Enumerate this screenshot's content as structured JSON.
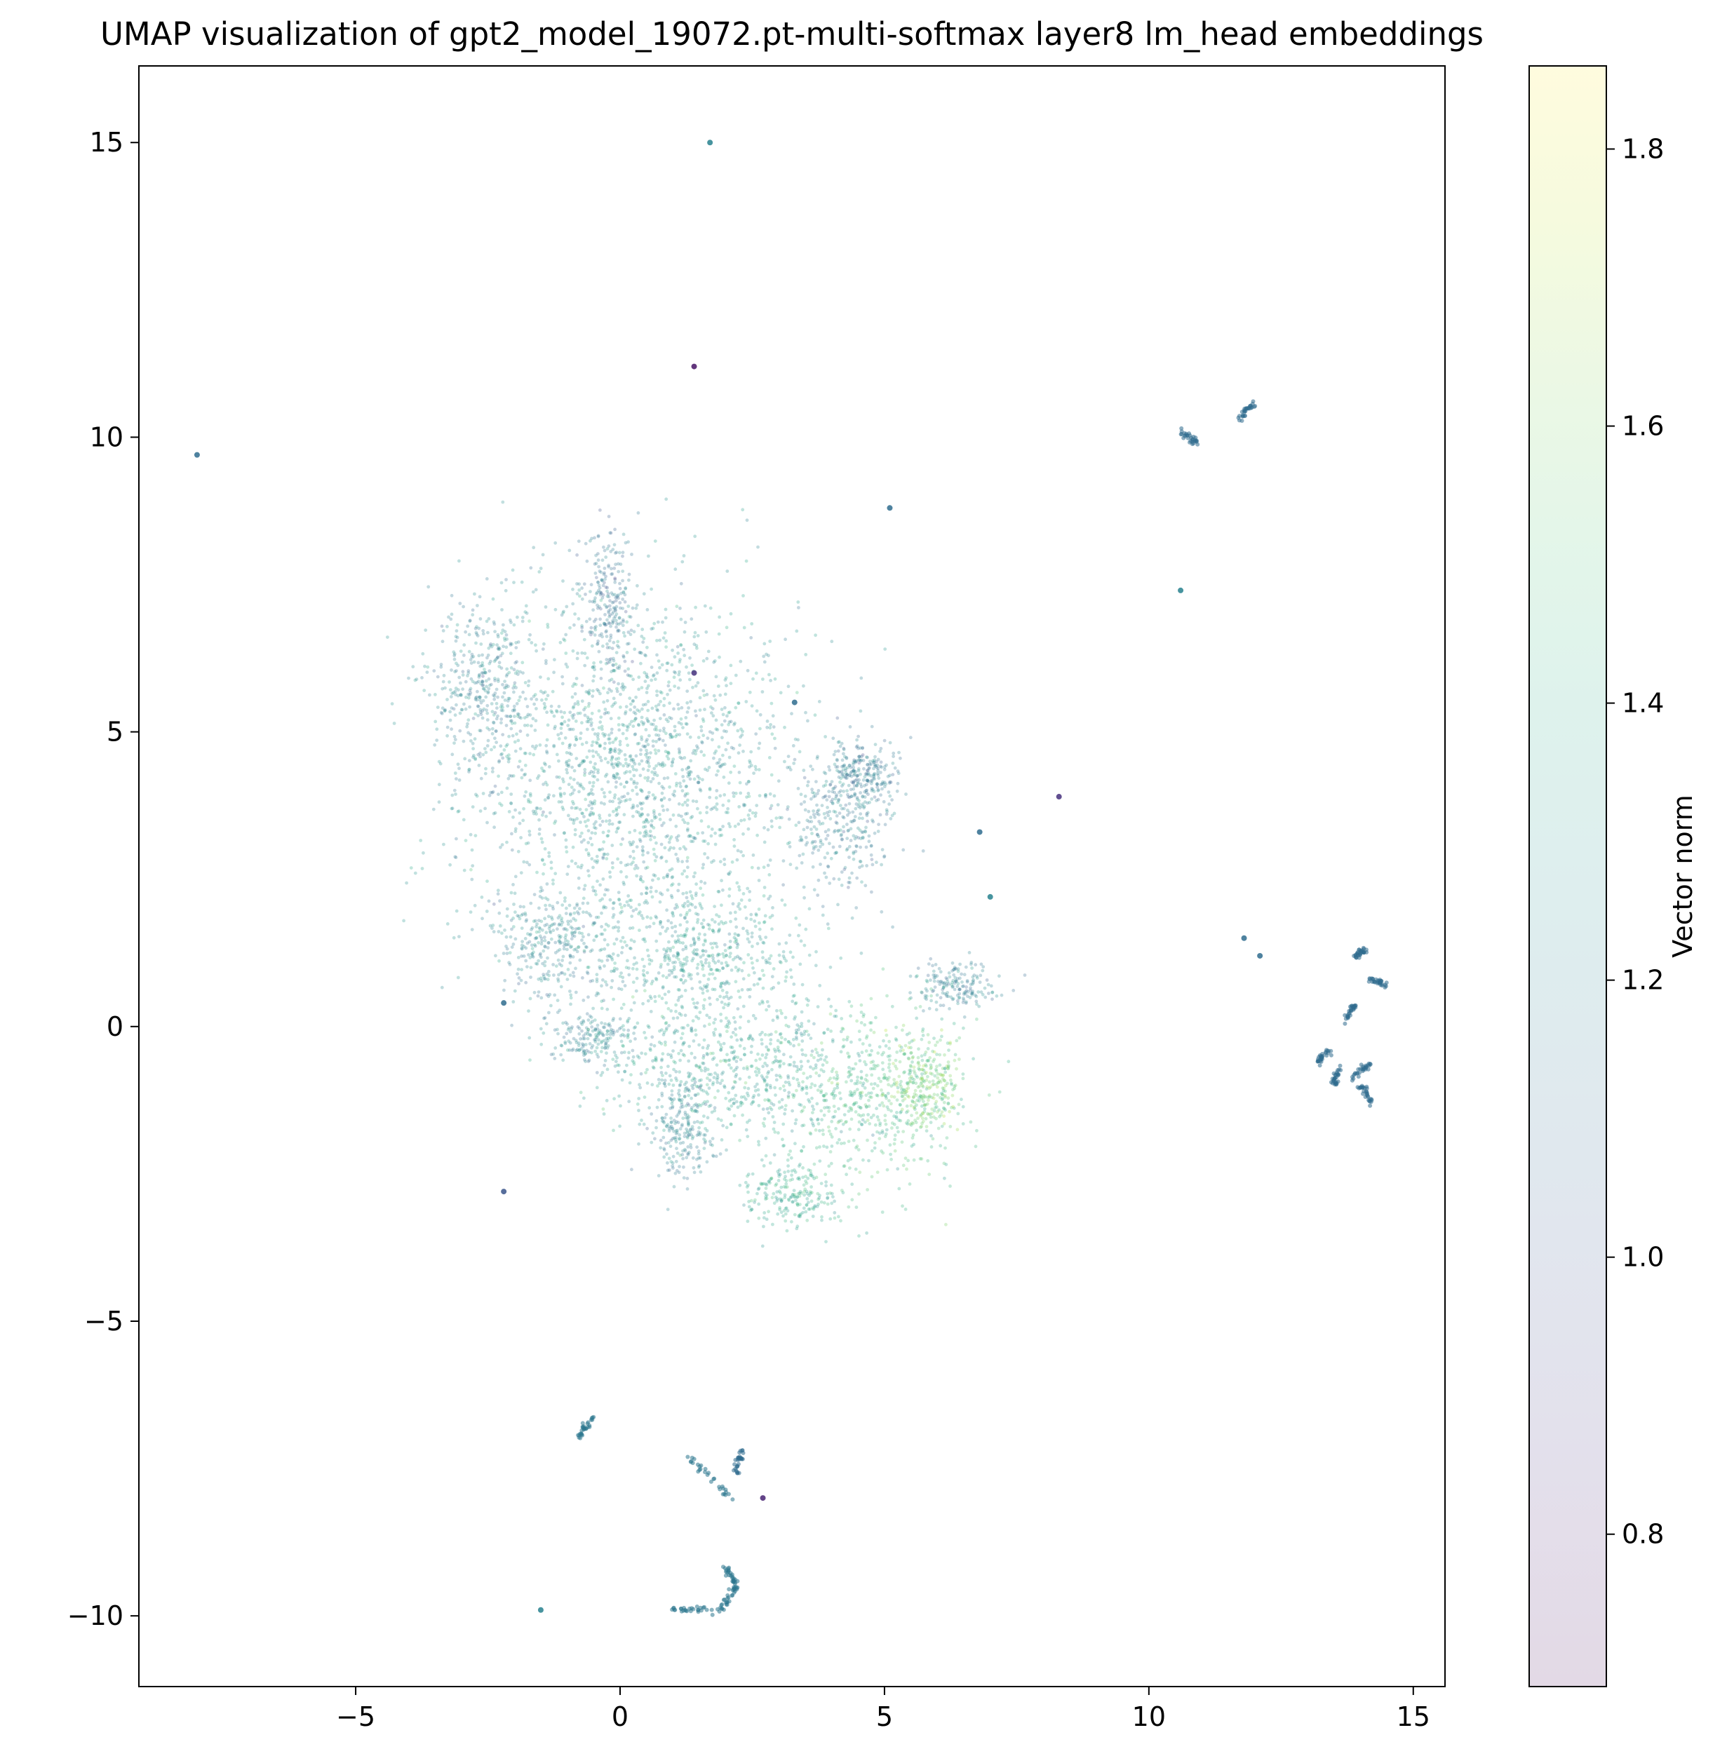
{
  "chart_data": {
    "type": "scatter",
    "title": "UMAP visualization of gpt2_model_19072.pt-multi-softmax layer8 lm_head embeddings",
    "xlabel": "",
    "ylabel": "",
    "xlim": [
      -9.1,
      15.6
    ],
    "ylim": [
      -11.2,
      16.3
    ],
    "x_ticks": [
      -5,
      0,
      5,
      10,
      15
    ],
    "y_ticks": [
      -10,
      -5,
      0,
      5,
      10,
      15
    ],
    "grid": false,
    "colormap": "viridis",
    "point_alpha": "low (semi-transparent)",
    "colorbar": {
      "label": "Vector norm",
      "range": [
        0.69,
        1.86
      ],
      "ticks": [
        0.8,
        1.0,
        1.2,
        1.4,
        1.6,
        1.8
      ]
    },
    "clusters": [
      {
        "name": "main upper-left mass",
        "center": [
          0.2,
          4.4
        ],
        "spread": [
          1.6,
          1.5
        ],
        "norm": 1.26
      },
      {
        "name": "upper-left dense edge",
        "center": [
          -2.6,
          5.8
        ],
        "spread": [
          0.5,
          0.7
        ],
        "norm": 1.18
      },
      {
        "name": "upward spur",
        "center": [
          -0.2,
          7.2
        ],
        "spread": [
          0.25,
          0.6
        ],
        "norm": 1.12
      },
      {
        "name": "lower-left arm",
        "center": [
          -1.2,
          1.4
        ],
        "spread": [
          0.6,
          0.5
        ],
        "norm": 1.2
      },
      {
        "name": "right lobe",
        "center": [
          4.2,
          3.6
        ],
        "spread": [
          0.5,
          0.7
        ],
        "norm": 1.18
      },
      {
        "name": "right lobe dense tip",
        "center": [
          4.6,
          4.3
        ],
        "spread": [
          0.3,
          0.2
        ],
        "norm": 1.15
      },
      {
        "name": "lower-right dense cluster",
        "center": [
          4.8,
          -1.1
        ],
        "spread": [
          0.9,
          0.7
        ],
        "norm": 1.45
      },
      {
        "name": "lower-right bright edge",
        "center": [
          5.8,
          -1.0
        ],
        "spread": [
          0.3,
          0.4
        ],
        "norm": 1.58
      },
      {
        "name": "lower middle band",
        "center": [
          2.0,
          -0.7
        ],
        "spread": [
          1.2,
          0.6
        ],
        "norm": 1.32
      },
      {
        "name": "lower stalk",
        "center": [
          1.2,
          -1.8
        ],
        "spread": [
          0.3,
          0.4
        ],
        "norm": 1.2
      },
      {
        "name": "bottom tail",
        "center": [
          3.3,
          -2.8
        ],
        "spread": [
          0.5,
          0.3
        ],
        "norm": 1.38
      },
      {
        "name": "middle bridge",
        "center": [
          1.5,
          1.2
        ],
        "spread": [
          1.0,
          0.6
        ],
        "norm": 1.3
      },
      {
        "name": "left diagonal arm",
        "center": [
          -0.5,
          -0.2
        ],
        "spread": [
          0.4,
          0.2
        ],
        "norm": 1.2
      },
      {
        "name": "right spur",
        "center": [
          6.4,
          0.7
        ],
        "spread": [
          0.4,
          0.2
        ],
        "norm": 1.18
      }
    ],
    "outliers": [
      {
        "x": 1.7,
        "y": 15.0,
        "norm": 1.2
      },
      {
        "x": 1.4,
        "y": 11.2,
        "norm": 0.75
      },
      {
        "x": -8.0,
        "y": 9.7,
        "norm": 1.1
      },
      {
        "x": 5.1,
        "y": 8.8,
        "norm": 1.1
      },
      {
        "x": 10.6,
        "y": 7.4,
        "norm": 1.2
      },
      {
        "x": 8.3,
        "y": 3.9,
        "norm": 0.85
      },
      {
        "x": 6.8,
        "y": 3.3,
        "norm": 1.1
      },
      {
        "x": 7.0,
        "y": 2.2,
        "norm": 1.2
      },
      {
        "x": 3.3,
        "y": 5.5,
        "norm": 1.1
      },
      {
        "x": -2.2,
        "y": 0.4,
        "norm": 1.1
      },
      {
        "x": -2.2,
        "y": -2.8,
        "norm": 1.0
      },
      {
        "x": -1.5,
        "y": -9.9,
        "norm": 1.2
      },
      {
        "x": 1.4,
        "y": 6.0,
        "norm": 0.85
      },
      {
        "x": 11.8,
        "y": 1.5,
        "norm": 1.1
      },
      {
        "x": 12.1,
        "y": 1.2,
        "norm": 1.1
      },
      {
        "x": 2.7,
        "y": -8.0,
        "norm": 0.8
      }
    ],
    "strands": [
      {
        "points": [
          [
            10.6,
            10.1
          ],
          [
            10.9,
            9.9
          ]
        ],
        "norm": 1.1
      },
      {
        "points": [
          [
            11.7,
            10.3
          ],
          [
            12.0,
            10.6
          ]
        ],
        "norm": 1.1
      },
      {
        "points": [
          [
            -0.8,
            -7.0
          ],
          [
            -0.5,
            -6.6
          ]
        ],
        "norm": 1.15
      },
      {
        "points": [
          [
            1.3,
            -7.3
          ],
          [
            2.1,
            -8.0
          ]
        ],
        "norm": 1.15
      },
      {
        "points": [
          [
            2.2,
            -7.6
          ],
          [
            2.3,
            -7.2
          ]
        ],
        "norm": 1.1
      },
      {
        "points": [
          [
            1.0,
            -9.9
          ],
          [
            1.9,
            -9.9
          ],
          [
            2.2,
            -9.5
          ],
          [
            2.0,
            -9.2
          ]
        ],
        "norm": 1.15
      },
      {
        "points": [
          [
            13.9,
            1.2
          ],
          [
            14.1,
            1.3
          ]
        ],
        "norm": 1.1
      },
      {
        "points": [
          [
            14.2,
            0.8
          ],
          [
            14.5,
            0.7
          ]
        ],
        "norm": 1.1
      },
      {
        "points": [
          [
            13.7,
            0.1
          ],
          [
            13.9,
            0.4
          ]
        ],
        "norm": 1.1
      },
      {
        "points": [
          [
            13.2,
            -0.6
          ],
          [
            13.4,
            -0.4
          ]
        ],
        "norm": 1.1
      },
      {
        "points": [
          [
            13.8,
            -0.9
          ],
          [
            14.2,
            -0.6
          ]
        ],
        "norm": 1.1
      },
      {
        "points": [
          [
            14.0,
            -1.0
          ],
          [
            14.2,
            -1.3
          ]
        ],
        "norm": 1.1
      },
      {
        "points": [
          [
            13.5,
            -1.0
          ],
          [
            13.6,
            -0.7
          ]
        ],
        "norm": 1.1
      }
    ]
  }
}
